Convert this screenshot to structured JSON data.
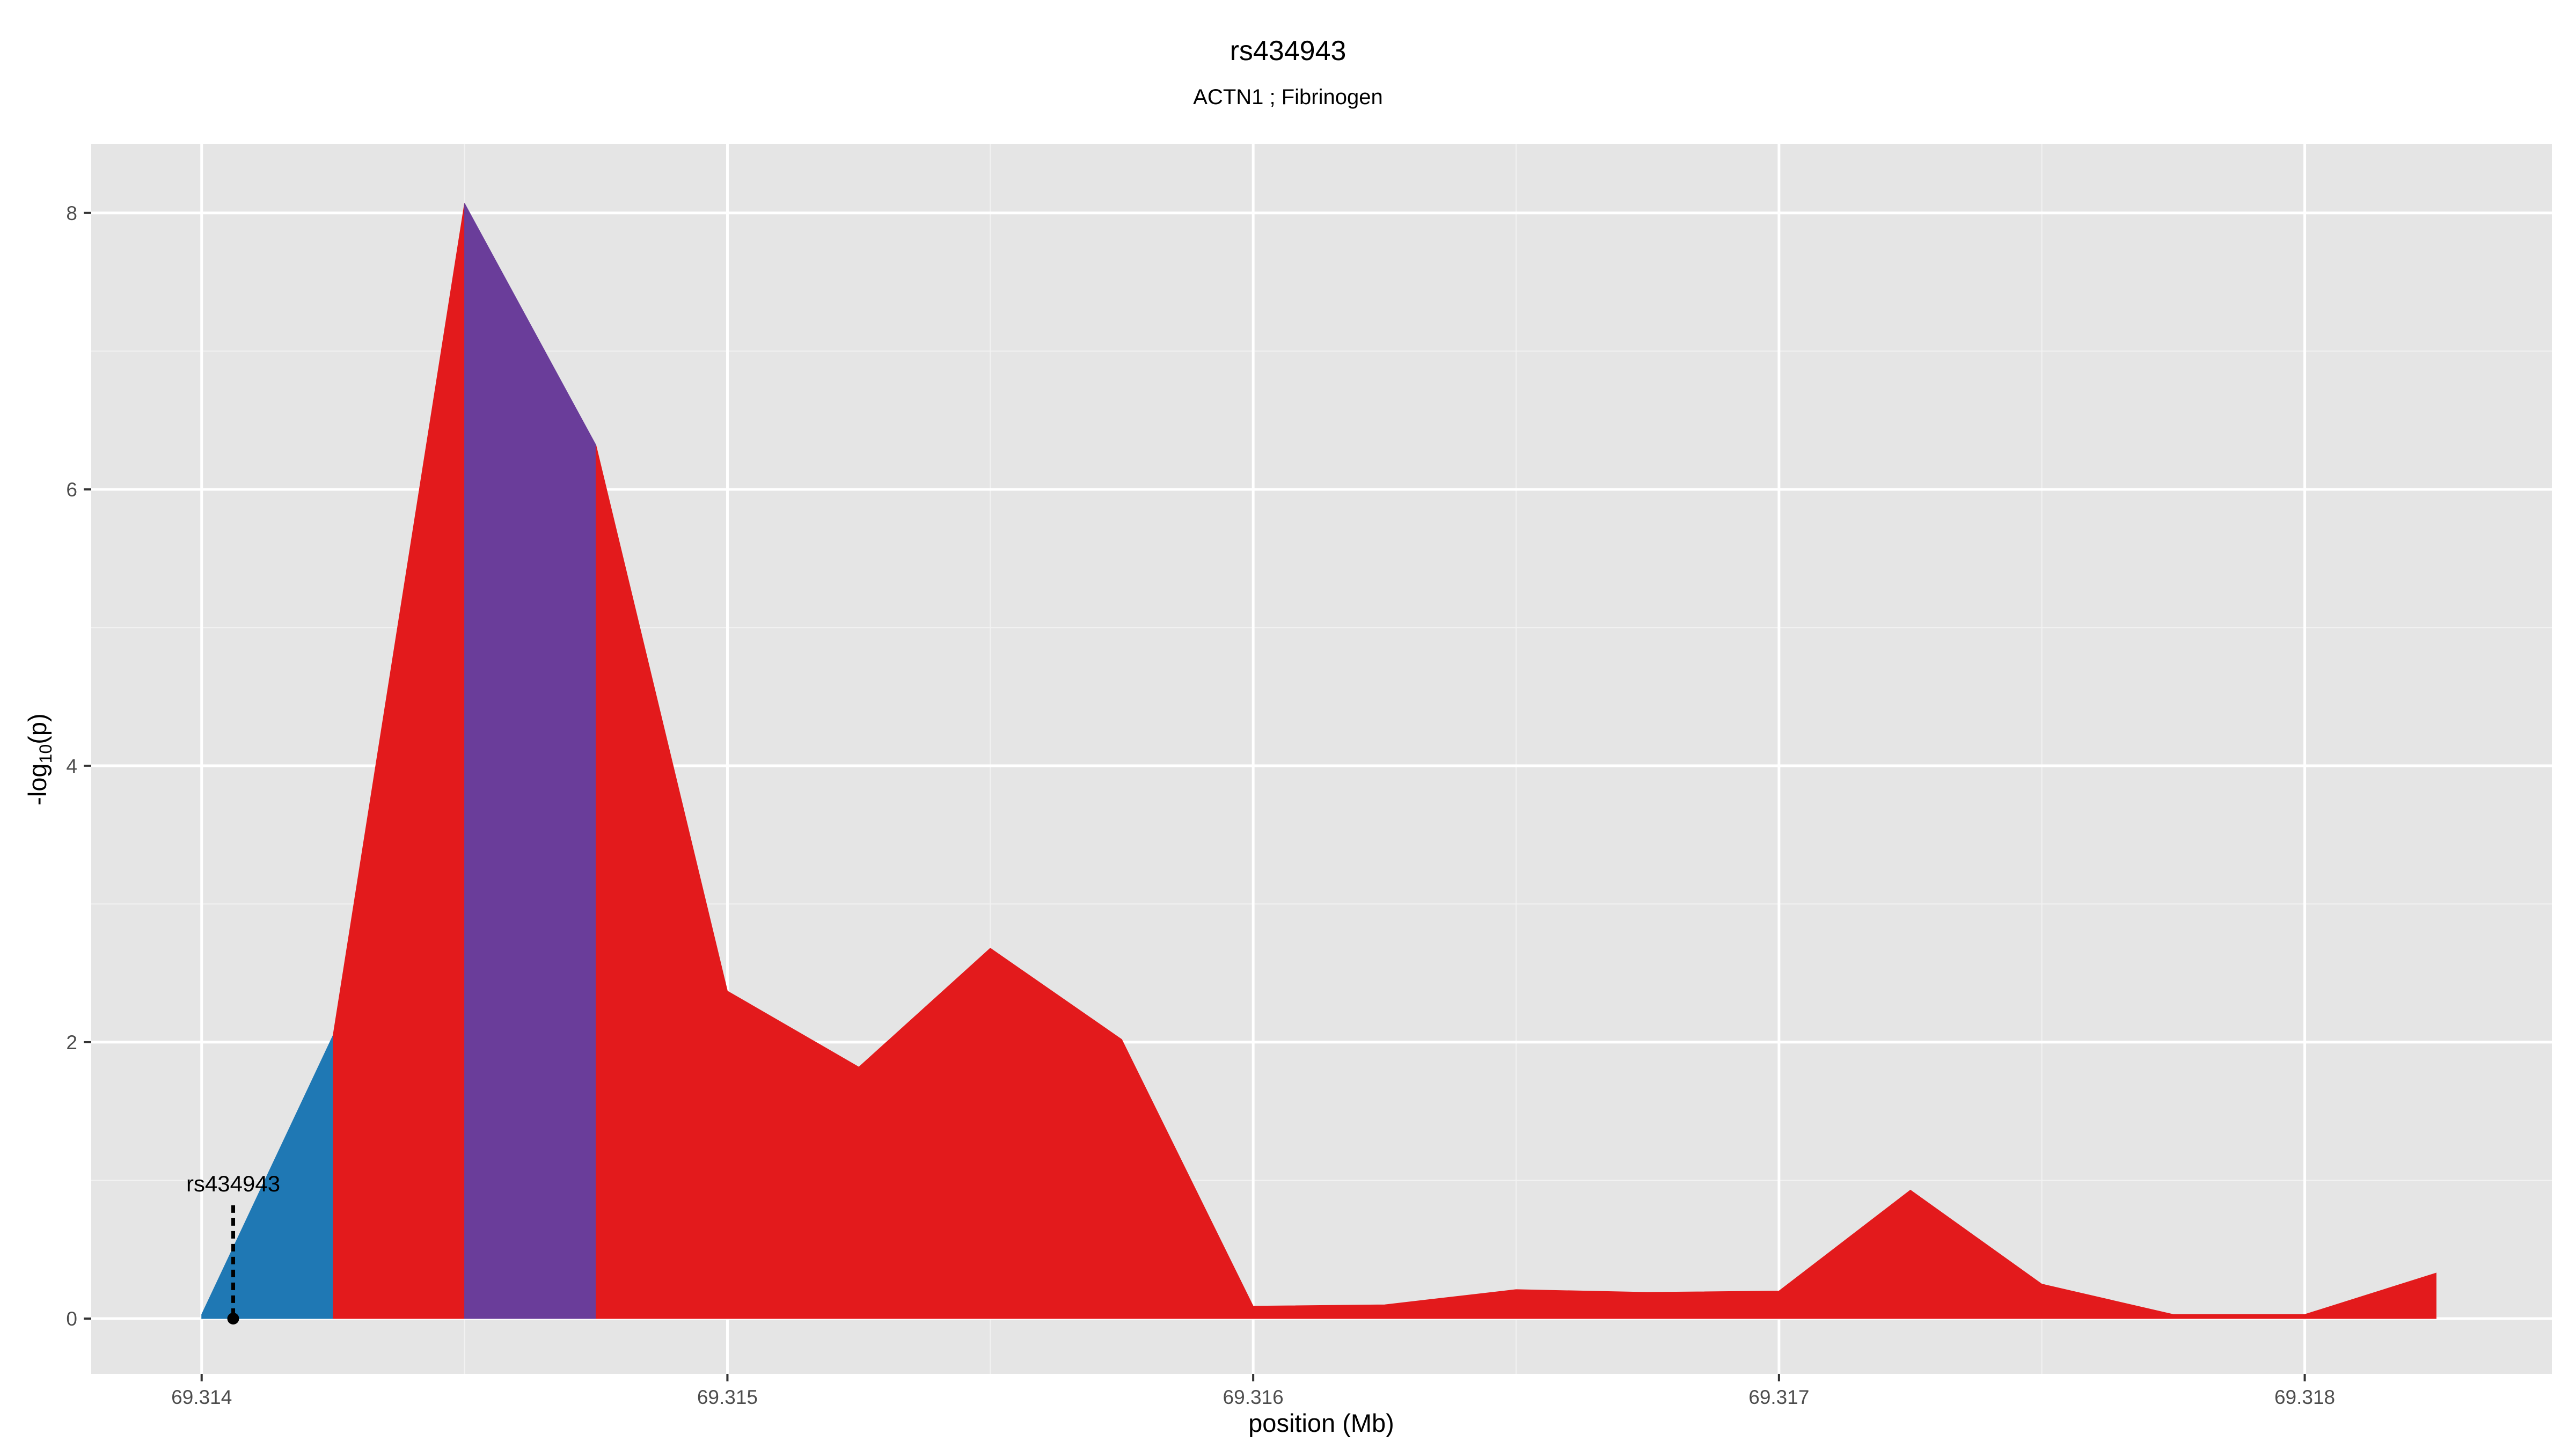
{
  "chart_data": {
    "type": "area",
    "title": "rs434943",
    "subtitle": "ACTN1 ; Fibrinogen",
    "xlabel": "position (Mb)",
    "ylabel_main": "-log",
    "ylabel_sub": "10",
    "ylabel_tail": "(p)",
    "xlim": [
      69.31379,
      69.31847
    ],
    "ylim": [
      -0.4,
      8.5
    ],
    "x_ticks": [
      69.314,
      69.315,
      69.316,
      69.317,
      69.318
    ],
    "x_tick_labels": [
      "69.314",
      "69.315",
      "69.316",
      "69.317",
      "69.318"
    ],
    "y_ticks": [
      0,
      2,
      4,
      6,
      8
    ],
    "y_tick_labels": [
      "0",
      "2",
      "4",
      "6",
      "8"
    ],
    "grid": true,
    "background": "#e5e5e5",
    "series": [
      {
        "color": "#1f78b4",
        "points": [
          [
            69.314,
            0.03
          ],
          [
            69.31425,
            2.05
          ]
        ]
      },
      {
        "color": "#e31a1c",
        "points": [
          [
            69.31425,
            2.05
          ],
          [
            69.3145,
            8.07
          ]
        ]
      },
      {
        "color": "#6a3d9a",
        "points": [
          [
            69.3145,
            8.07
          ],
          [
            69.31475,
            6.32
          ]
        ]
      },
      {
        "color": "#e31a1c",
        "points": [
          [
            69.31475,
            6.32
          ],
          [
            69.315,
            2.37
          ],
          [
            69.31525,
            1.82
          ],
          [
            69.3155,
            2.68
          ],
          [
            69.31575,
            2.02
          ],
          [
            69.316,
            0.09
          ],
          [
            69.31625,
            0.1
          ],
          [
            69.3165,
            0.21
          ],
          [
            69.31675,
            0.19
          ],
          [
            69.317,
            0.2
          ],
          [
            69.31725,
            0.93
          ],
          [
            69.3175,
            0.25
          ],
          [
            69.31775,
            0.03
          ],
          [
            69.318,
            0.03
          ],
          [
            69.31825,
            0.33
          ]
        ]
      }
    ],
    "annotation": {
      "label": "rs434943",
      "x": 69.31406,
      "y": 0,
      "line_top": 0.82
    }
  }
}
